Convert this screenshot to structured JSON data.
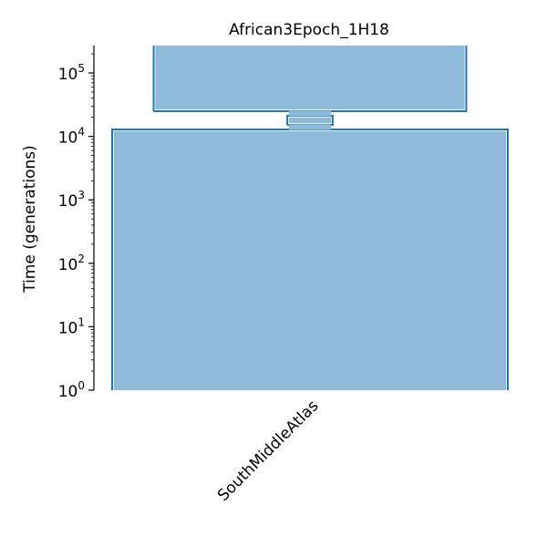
{
  "chart_data": {
    "type": "demography",
    "title": "African3Epoch_1H18",
    "ylabel": "Time (generations)",
    "yscale": "log",
    "ylim": [
      1,
      270000
    ],
    "yticks": [
      {
        "value": 1,
        "base": "10",
        "exp": "0"
      },
      {
        "value": 10,
        "base": "10",
        "exp": "1"
      },
      {
        "value": 100,
        "base": "10",
        "exp": "2"
      },
      {
        "value": 1000,
        "base": "10",
        "exp": "3"
      },
      {
        "value": 10000,
        "base": "10",
        "exp": "4"
      },
      {
        "value": 100000,
        "base": "10",
        "exp": "5"
      }
    ],
    "categories": [
      "SouthMiddleAtlas"
    ],
    "epochs": [
      {
        "start_time": 0,
        "end_time": 14000,
        "relative_size": 1.0
      },
      {
        "start_time": 14000,
        "end_time": 23000,
        "relative_size": 0.115
      },
      {
        "start_time": 23000,
        "end_time": 270000,
        "relative_size": 0.79
      }
    ],
    "fill_color": "#8fbbd9",
    "edge_color": "#1f77b4",
    "grid": false,
    "legend": "none"
  }
}
